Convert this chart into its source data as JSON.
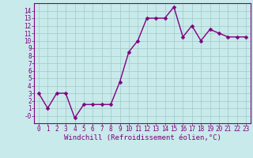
{
  "x": [
    0,
    1,
    2,
    3,
    4,
    5,
    6,
    7,
    8,
    9,
    10,
    11,
    12,
    13,
    14,
    15,
    16,
    17,
    18,
    19,
    20,
    21,
    22,
    23
  ],
  "y": [
    3,
    1,
    3,
    3,
    -0.3,
    1.5,
    1.5,
    1.5,
    1.5,
    4.5,
    8.5,
    10,
    13,
    13,
    13,
    14.5,
    10.5,
    12,
    10,
    11.5,
    11,
    10.5,
    10.5,
    10.5
  ],
  "line_color": "#800080",
  "marker_color": "#800080",
  "bg_color": "#c8eaea",
  "grid_color": "#a0c8c8",
  "xlabel": "Windchill (Refroidissement éolien,°C)",
  "xlim": [
    -0.5,
    23.5
  ],
  "ylim": [
    -1.0,
    15.0
  ],
  "yticks": [
    14,
    13,
    12,
    11,
    10,
    9,
    8,
    7,
    6,
    5,
    4,
    3,
    2,
    1,
    0
  ],
  "ytick_labels": [
    "14",
    "13",
    "12",
    "11",
    "10",
    "9",
    "8",
    "7",
    "6",
    "5",
    "4",
    "3",
    "2",
    "1",
    "-0"
  ],
  "xticks": [
    0,
    1,
    2,
    3,
    4,
    5,
    6,
    7,
    8,
    9,
    10,
    11,
    12,
    13,
    14,
    15,
    16,
    17,
    18,
    19,
    20,
    21,
    22,
    23
  ],
  "tick_label_size": 5.5,
  "xlabel_size": 6.5,
  "line_width": 1.0,
  "marker_size": 2.5
}
